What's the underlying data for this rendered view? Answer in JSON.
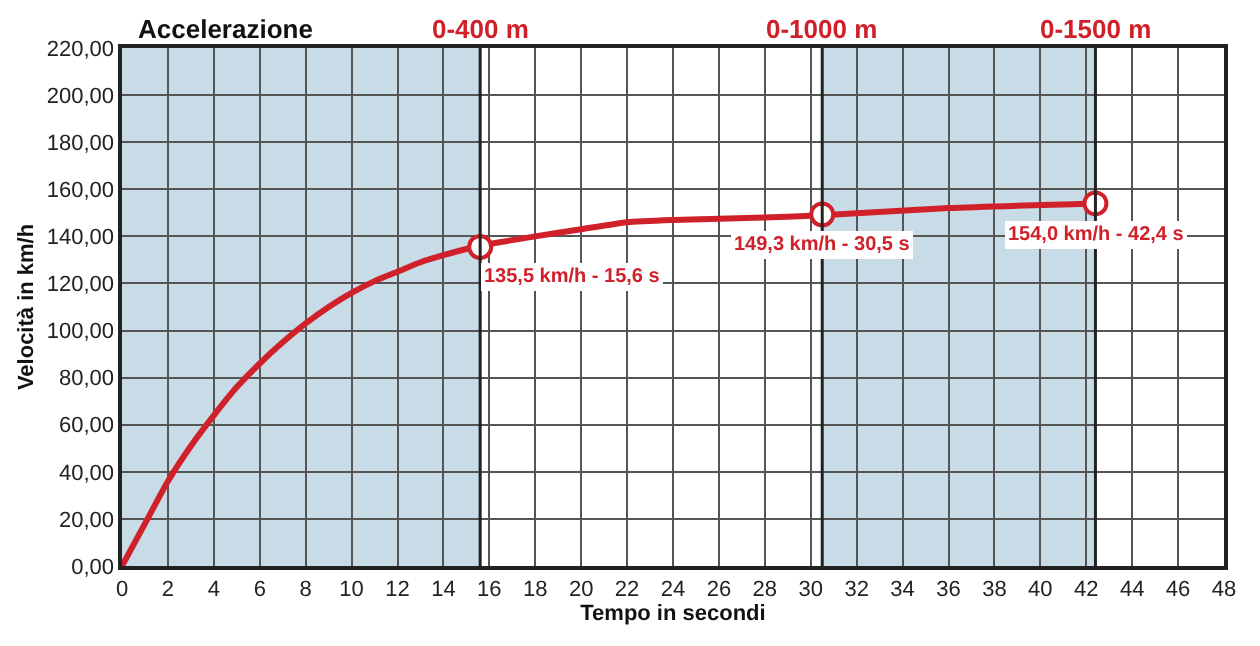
{
  "chart_data": {
    "type": "line",
    "title": "Accelerazione",
    "xlabel": "Tempo in secondi",
    "ylabel": "Velocità in km/h",
    "xlim": [
      0,
      48
    ],
    "xticks": [
      0,
      2,
      4,
      6,
      8,
      10,
      12,
      14,
      16,
      18,
      20,
      22,
      24,
      26,
      28,
      30,
      32,
      34,
      36,
      38,
      40,
      42,
      44,
      46,
      48
    ],
    "ylim": [
      0,
      220
    ],
    "yticks": [
      {
        "value": 0,
        "label": "0,00"
      },
      {
        "value": 20,
        "label": "20,00"
      },
      {
        "value": 40,
        "label": "40,00"
      },
      {
        "value": 60,
        "label": "60,00"
      },
      {
        "value": 80,
        "label": "80,00"
      },
      {
        "value": 100,
        "label": "100,00"
      },
      {
        "value": 120,
        "label": "120,00"
      },
      {
        "value": 140,
        "label": "140,00"
      },
      {
        "value": 160,
        "label": "160,00"
      },
      {
        "value": 180,
        "label": "180,00"
      },
      {
        "value": 200,
        "label": "200,00"
      },
      {
        "value": 220,
        "label": "220,00"
      }
    ],
    "grid": true,
    "series": [
      {
        "color": "#d0202a",
        "marker": "none",
        "x": [
          0,
          1,
          2,
          3,
          4,
          5,
          6,
          7,
          8,
          9,
          10,
          11,
          12,
          13,
          14,
          15.6,
          18,
          20,
          22,
          24,
          28,
          30.5,
          36,
          42.4
        ],
        "values": [
          0,
          18,
          36,
          51,
          64,
          76,
          86,
          95,
          103,
          110,
          116,
          121,
          125,
          129,
          132,
          136,
          140,
          143,
          146,
          147,
          148,
          149,
          152,
          154
        ]
      },
      {
        "type": "scatter",
        "color": "#d0202a",
        "marker": "circle",
        "x": [
          15.6,
          30.5,
          42.4
        ],
        "values": [
          135.5,
          149.3,
          154.0
        ]
      }
    ],
    "bands": [
      {
        "axis": "x",
        "from": 0,
        "to": 15.6,
        "color": "#c8dce8"
      },
      {
        "axis": "x",
        "from": 30.5,
        "to": 42.4,
        "color": "#c8dce8"
      }
    ],
    "ref_lines": [
      {
        "axis": "x",
        "value": 15.6,
        "label": "0-400 m",
        "color": "#222222"
      },
      {
        "axis": "x",
        "value": 30.5,
        "label": "0-1000 m",
        "color": "#222222"
      },
      {
        "axis": "x",
        "value": 42.4,
        "label": "0-1500 m",
        "color": "#222222"
      }
    ],
    "annotations": [
      {
        "text": "135,5 km/h - 15,6 s",
        "x": 15.6,
        "y": 135.5
      },
      {
        "text": "149,3 km/h - 30,5 s",
        "x": 30.5,
        "y": 149.3
      },
      {
        "text": "154,0 km/h - 42,4 s",
        "x": 42.4,
        "y": 154.0
      }
    ]
  }
}
